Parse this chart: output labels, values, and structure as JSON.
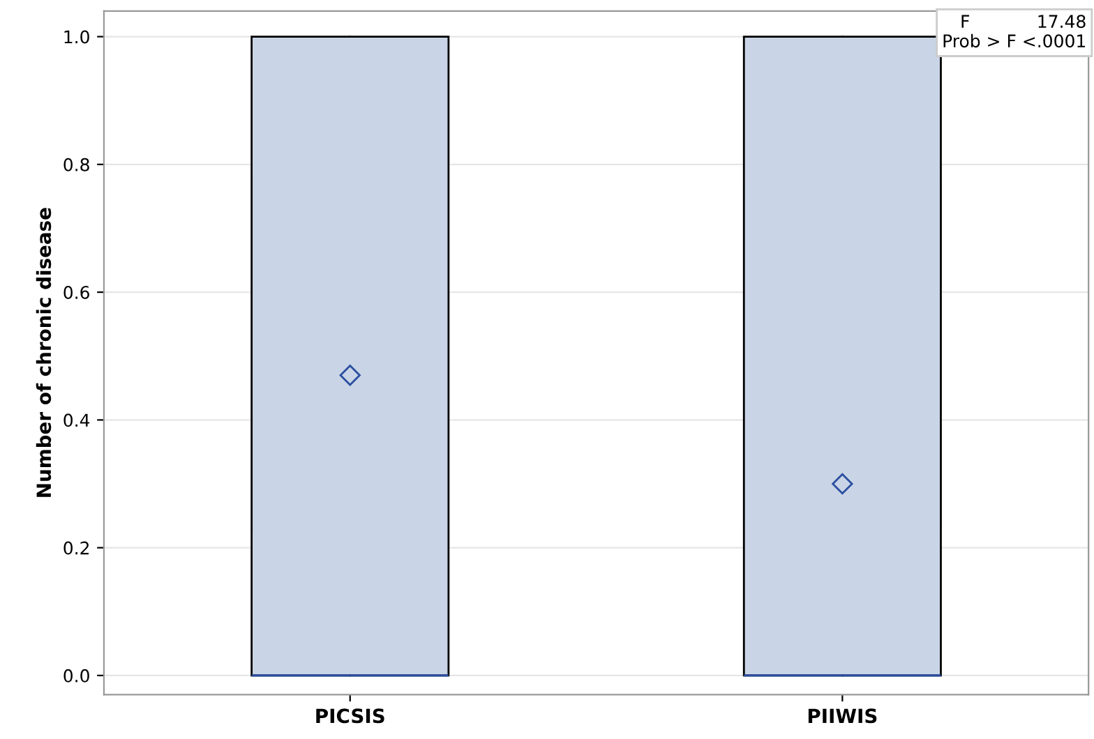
{
  "chart_data": {
    "type": "box",
    "ylabel": "Number of chronic disease",
    "categories": [
      "PICSIS",
      "PIIWIS"
    ],
    "boxes": [
      {
        "low": 0,
        "q1": 0,
        "median": 0,
        "q3": 1,
        "high": 1,
        "mean": 0.47
      },
      {
        "low": 0,
        "q1": 0,
        "median": 0,
        "q3": 1,
        "high": 1,
        "mean": 0.3
      }
    ],
    "color": "#c9d5e6",
    "ylim": [
      -0.03,
      1.04
    ],
    "yticks": [
      {
        "value": 0,
        "label": "0.0"
      },
      {
        "value": 0.2,
        "label": "0.2"
      },
      {
        "value": 0.4,
        "label": "0.4"
      },
      {
        "value": 0.6,
        "label": "0.6"
      },
      {
        "value": 0.8,
        "label": "0.8"
      },
      {
        "value": 1,
        "label": "1.0"
      }
    ],
    "grid": "y",
    "marker": "diamond",
    "annotations": [
      "F            17.48",
      "Prob > F <.0001"
    ]
  }
}
